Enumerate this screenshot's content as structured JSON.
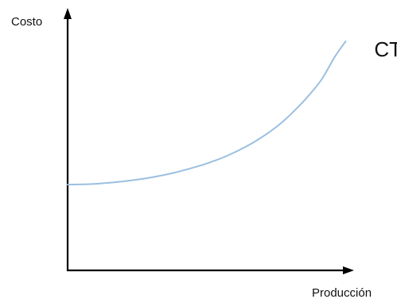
{
  "chart_data": {
    "type": "line",
    "xlabel": "Producción",
    "ylabel": "Costo",
    "xlim": [
      0,
      10
    ],
    "ylim": [
      0,
      10
    ],
    "grid": false,
    "legend": "none",
    "series": [
      {
        "name": "CT",
        "color": "#9bbfe0",
        "x": [
          0,
          1,
          2,
          3,
          4,
          5,
          5.5,
          6,
          6.5,
          7,
          7.5,
          8,
          8.5,
          9,
          9.5,
          10,
          10.4
        ],
        "y": [
          3.37,
          3.4,
          3.49,
          3.63,
          3.84,
          4.13,
          4.31,
          4.52,
          4.77,
          5.06,
          5.4,
          5.8,
          6.29,
          6.85,
          7.5,
          8.4,
          9.0
        ]
      }
    ]
  }
}
